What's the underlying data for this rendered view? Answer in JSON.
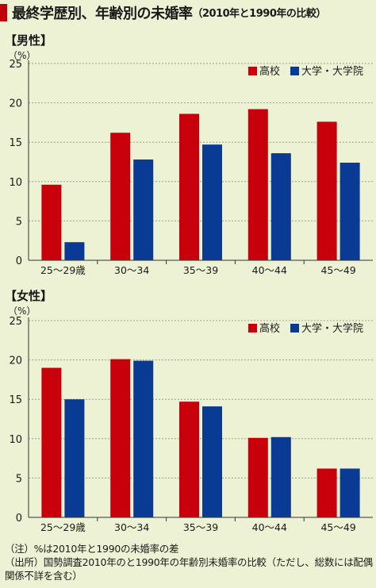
{
  "title": {
    "main": "最終学歴別、年齢別の未婚率",
    "sub": "（2010年と1990年の比較）"
  },
  "colors": {
    "highschool": "#c8000b",
    "university": "#0a3b94",
    "grid": "#9aa08a",
    "background": "#eef2d4"
  },
  "chart_data": [
    {
      "type": "bar",
      "panel_label": "【男性】",
      "unit": "（%）",
      "categories": [
        "25〜29歳",
        "30〜34",
        "35〜39",
        "40〜44",
        "45〜49"
      ],
      "series": [
        {
          "name": "高校",
          "values": [
            9.6,
            16.2,
            18.6,
            19.2,
            17.6
          ]
        },
        {
          "name": "大学・大学院",
          "values": [
            2.3,
            12.8,
            14.7,
            13.6,
            12.4
          ]
        }
      ],
      "ylim": [
        0,
        25
      ],
      "yticks": [
        "0",
        "5",
        "10",
        "15",
        "20",
        "25"
      ],
      "grid": true,
      "legend": "top-right"
    },
    {
      "type": "bar",
      "panel_label": "【女性】",
      "unit": "（%）",
      "categories": [
        "25〜29歳",
        "30〜34",
        "35〜39",
        "40〜44",
        "45〜49"
      ],
      "series": [
        {
          "name": "高校",
          "values": [
            19.0,
            20.1,
            14.7,
            10.1,
            6.2
          ]
        },
        {
          "name": "大学・大学院",
          "values": [
            15.0,
            19.9,
            14.1,
            10.2,
            6.2
          ]
        }
      ],
      "ylim": [
        0,
        25
      ],
      "yticks": [
        "0",
        "5",
        "10",
        "15",
        "20",
        "25"
      ],
      "grid": true,
      "legend": "top-right"
    }
  ],
  "notes": {
    "note1": "（注）%は2010年と1990の未婚率の差",
    "note2": "（出所）国勢調査2010年のと1990年の年齢別未婚率の比較（ただし、総数には配偶関係不詳を含む）"
  }
}
